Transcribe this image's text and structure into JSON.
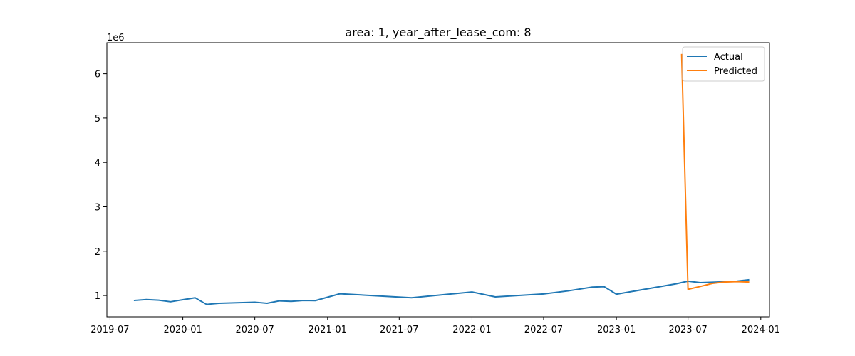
{
  "chart_data": {
    "type": "line",
    "title": "area: 1, year_after_lease_com: 8",
    "xlabel": "",
    "ylabel": "",
    "y_offset_label": "1e6",
    "y_scale_factor": 1000000,
    "xlim": [
      "2019-06-23",
      "2024-01-23"
    ],
    "ylim": [
      520000,
      6700000
    ],
    "x_ticks": [
      {
        "date": "2019-07-01",
        "label": "2019-07"
      },
      {
        "date": "2020-01-01",
        "label": "2020-01"
      },
      {
        "date": "2020-07-01",
        "label": "2020-07"
      },
      {
        "date": "2021-01-01",
        "label": "2021-01"
      },
      {
        "date": "2021-07-01",
        "label": "2021-07"
      },
      {
        "date": "2022-01-01",
        "label": "2022-01"
      },
      {
        "date": "2022-07-01",
        "label": "2022-07"
      },
      {
        "date": "2023-01-01",
        "label": "2023-01"
      },
      {
        "date": "2023-07-01",
        "label": "2023-07"
      },
      {
        "date": "2024-01-01",
        "label": "2024-01"
      }
    ],
    "y_ticks": [
      {
        "value": 1000000,
        "label": "1"
      },
      {
        "value": 2000000,
        "label": "2"
      },
      {
        "value": 3000000,
        "label": "3"
      },
      {
        "value": 4000000,
        "label": "4"
      },
      {
        "value": 5000000,
        "label": "5"
      },
      {
        "value": 6000000,
        "label": "6"
      }
    ],
    "grid": false,
    "legend_position": "top-right",
    "series": [
      {
        "name": "Actual",
        "color": "#1f77b4",
        "x": [
          "2019-09-01",
          "2019-10-01",
          "2019-11-01",
          "2019-12-01",
          "2020-02-01",
          "2020-03-01",
          "2020-04-01",
          "2020-07-01",
          "2020-08-01",
          "2020-09-01",
          "2020-10-01",
          "2020-11-01",
          "2020-12-01",
          "2021-02-01",
          "2021-08-01",
          "2022-01-01",
          "2022-03-01",
          "2022-07-01",
          "2022-09-01",
          "2022-11-01",
          "2022-12-01",
          "2023-01-01",
          "2023-06-01",
          "2023-07-01",
          "2023-08-01",
          "2023-09-01",
          "2023-10-01",
          "2023-11-01",
          "2023-12-01"
        ],
        "y": [
          890000,
          910000,
          895000,
          860000,
          950000,
          800000,
          825000,
          850000,
          825000,
          880000,
          870000,
          890000,
          885000,
          1040000,
          950000,
          1080000,
          970000,
          1035000,
          1105000,
          1190000,
          1200000,
          1030000,
          1265000,
          1325000,
          1290000,
          1300000,
          1310000,
          1325000,
          1355000
        ]
      },
      {
        "name": "Predicted",
        "color": "#ff7f0e",
        "x": [
          "2023-06-15",
          "2023-07-01",
          "2023-08-01",
          "2023-09-01",
          "2023-10-01",
          "2023-11-01",
          "2023-12-01"
        ],
        "y": [
          6430000,
          1140000,
          1205000,
          1275000,
          1305000,
          1315000,
          1305000
        ]
      }
    ]
  }
}
